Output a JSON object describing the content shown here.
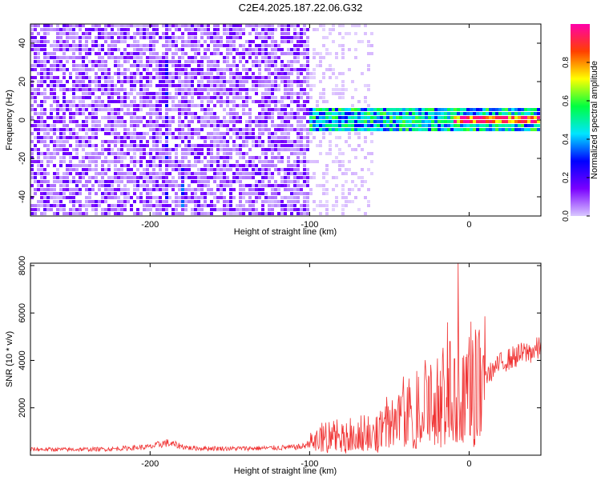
{
  "title": "C2E4.2025.187.22.06.G32",
  "chart_data": [
    {
      "type": "heatmap",
      "xlabel": "Height of straight line (km)",
      "ylabel": "Frequency (Hz)",
      "xlim": [
        -275,
        45
      ],
      "ylim": [
        -50,
        50
      ],
      "xticks": [
        -200,
        -100,
        0
      ],
      "yticks": [
        -40,
        -20,
        0,
        20,
        40
      ],
      "colorbar": {
        "label": "Normalized spectral amplitude",
        "range": [
          0,
          1
        ],
        "ticks": [
          0.0,
          0.2,
          0.4,
          0.6,
          0.8
        ],
        "tick_labels": [
          "0.0",
          "0.2",
          "0.4",
          "0.6",
          "0.8"
        ],
        "colormap": [
          "#d9c8ff",
          "#7a00ff",
          "#0000ff",
          "#00e5ff",
          "#00ff40",
          "#ffff00",
          "#ff4000",
          "#ff00aa"
        ]
      },
      "regions": [
        {
          "x_range": [
            -275,
            -100
          ],
          "freq_range": [
            -50,
            50
          ],
          "level": 0.05
        },
        {
          "x_range": [
            -100,
            -60
          ],
          "freq_range": [
            -50,
            50
          ],
          "level": 0.01
        },
        {
          "x_range": [
            -100,
            45
          ],
          "freq_range": [
            -6,
            6
          ],
          "level": 0.45
        },
        {
          "x_range": [
            -10,
            45
          ],
          "freq_range": [
            -1.5,
            1.5
          ],
          "level": 0.85
        }
      ],
      "features": [
        {
          "x": -190,
          "freq_range": [
            -50,
            50
          ],
          "level": 0.15
        },
        {
          "x": -180,
          "freq_range": [
            -50,
            -20
          ],
          "level": 0.2
        }
      ]
    },
    {
      "type": "line",
      "xlabel": "Height of straight line (km)",
      "ylabel": "SNR (10 * v/v)",
      "xlim": [
        -275,
        45
      ],
      "ylim": [
        0,
        8100
      ],
      "xticks": [
        -200,
        -100,
        0
      ],
      "yticks": [
        2000,
        4000,
        6000,
        8000
      ],
      "color": "#f03232",
      "x": [
        -275,
        -250,
        -225,
        -200,
        -190,
        -175,
        -150,
        -125,
        -105,
        -100,
        -90,
        -80,
        -70,
        -60,
        -50,
        -40,
        -30,
        -20,
        -15,
        -10,
        -5,
        0,
        5,
        10,
        20,
        30,
        40,
        45
      ],
      "y": [
        250,
        240,
        260,
        350,
        520,
        300,
        280,
        300,
        350,
        500,
        700,
        700,
        800,
        900,
        1200,
        1500,
        1800,
        2200,
        2700,
        2000,
        2400,
        2800,
        3000,
        3300,
        3900,
        4200,
        4400,
        4500
      ],
      "spikes": [
        {
          "x": -7,
          "y": 8100
        },
        {
          "x": -12,
          "y": 4800
        },
        {
          "x": 4,
          "y": 5300
        },
        {
          "x": 9,
          "y": 4200
        }
      ]
    }
  ]
}
